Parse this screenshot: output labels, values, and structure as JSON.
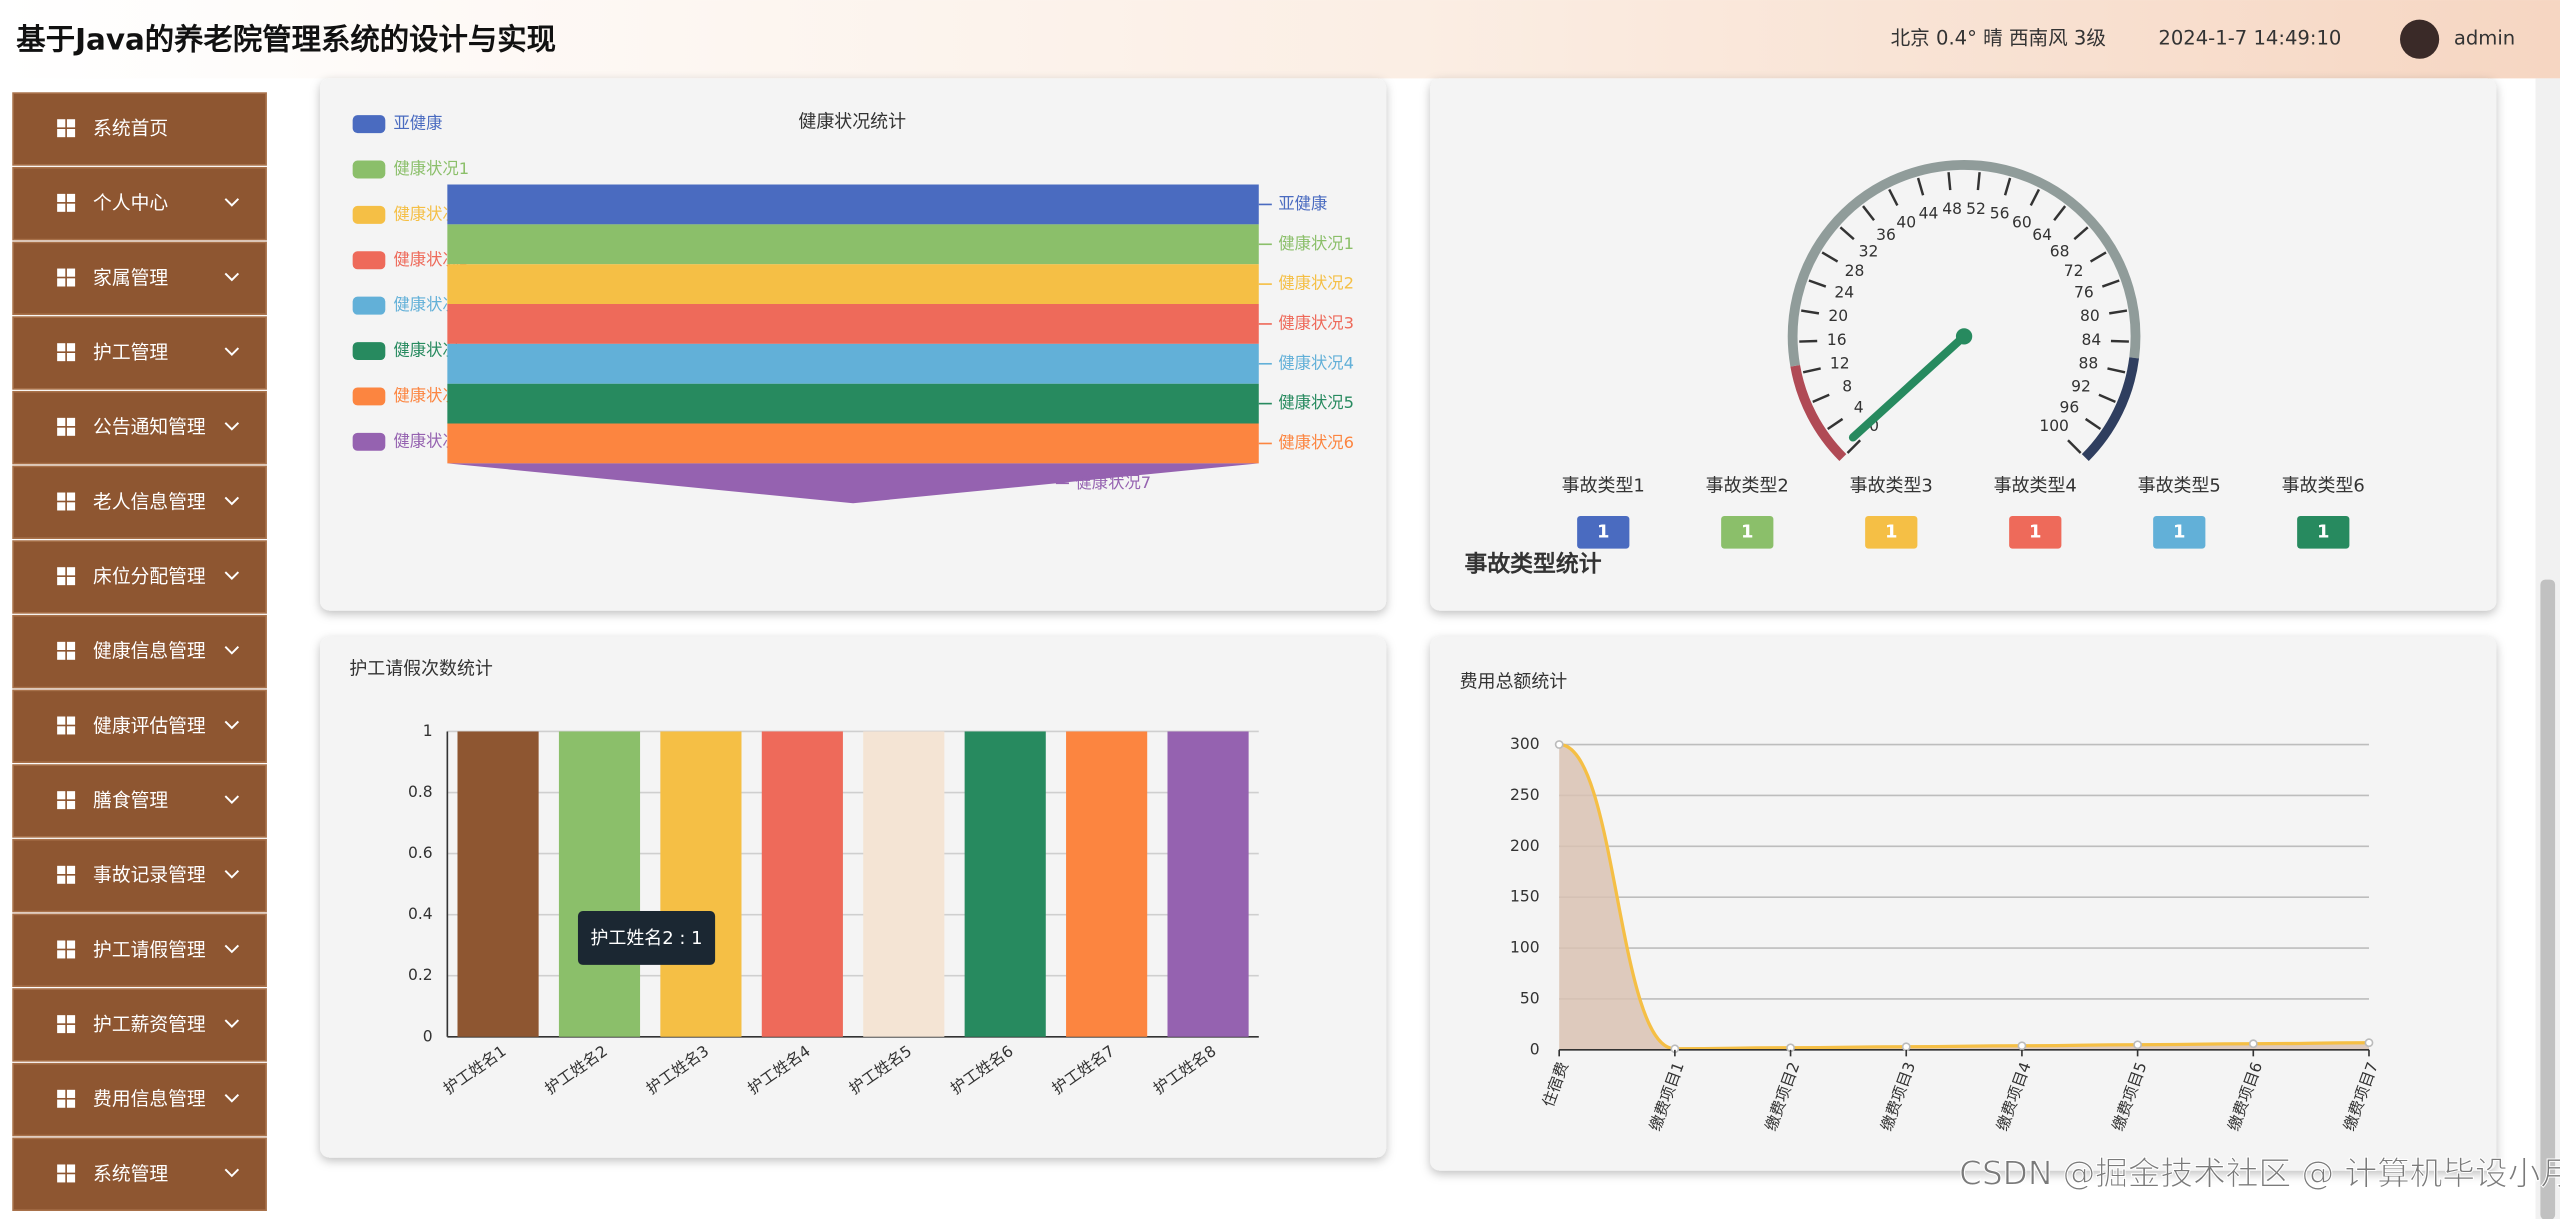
{
  "header": {
    "title": "基于Java的养老院管理系统的设计与实现",
    "weather": "北京  0.4°  晴  西南风  3级",
    "datetime": "2024-1-7 14:49:10",
    "user": "admin"
  },
  "menu": [
    {
      "label": "系统首页",
      "expandable": false
    },
    {
      "label": "个人中心",
      "expandable": true
    },
    {
      "label": "家属管理",
      "expandable": true
    },
    {
      "label": "护工管理",
      "expandable": true
    },
    {
      "label": "公告通知管理",
      "expandable": true
    },
    {
      "label": "老人信息管理",
      "expandable": true
    },
    {
      "label": "床位分配管理",
      "expandable": true
    },
    {
      "label": "健康信息管理",
      "expandable": true
    },
    {
      "label": "健康评估管理",
      "expandable": true
    },
    {
      "label": "膳食管理",
      "expandable": true
    },
    {
      "label": "事故记录管理",
      "expandable": true
    },
    {
      "label": "护工请假管理",
      "expandable": true
    },
    {
      "label": "护工薪资管理",
      "expandable": true
    },
    {
      "label": "费用信息管理",
      "expandable": true
    },
    {
      "label": "系统管理",
      "expandable": true
    }
  ],
  "chart_data": [
    {
      "type": "funnel",
      "title": "健康状况统计",
      "categories": [
        "亚健康",
        "健康状况1",
        "健康状况2",
        "健康状况3",
        "健康状况4",
        "健康状况5",
        "健康状况6",
        "健康状况7"
      ],
      "values": [
        1,
        1,
        1,
        1,
        1,
        1,
        1,
        1
      ],
      "colors": [
        "#4a6bc0",
        "#8bbf6a",
        "#f5bf45",
        "#ee6a5a",
        "#62b0d8",
        "#278a5f",
        "#fc8540",
        "#9562b0"
      ]
    },
    {
      "type": "gauge",
      "title": "事故类型统计",
      "value": 1,
      "ylim": [
        0,
        100
      ],
      "yticks": [
        0,
        4,
        8,
        12,
        16,
        20,
        24,
        28,
        32,
        36,
        40,
        44,
        48,
        52,
        56,
        60,
        64,
        68,
        72,
        76,
        80,
        84,
        88,
        92,
        96,
        100
      ],
      "pointer_color": "#278a5f",
      "categories": [
        "事故类型1",
        "事故类型2",
        "事故类型3",
        "事故类型4",
        "事故类型5",
        "事故类型6"
      ],
      "values": [
        1,
        1,
        1,
        1,
        1,
        1
      ],
      "colors": [
        "#4a6bc0",
        "#8bbf6a",
        "#f5bf45",
        "#ee6a5a",
        "#62b0d8",
        "#278a5f"
      ]
    },
    {
      "type": "bar",
      "title": "护工请假次数统计",
      "categories": [
        "护工姓名1",
        "护工姓名2",
        "护工姓名3",
        "护工姓名4",
        "护工姓名5",
        "护工姓名6",
        "护工姓名7",
        "护工姓名8"
      ],
      "values": [
        1,
        1,
        1,
        1,
        1,
        1,
        1,
        1
      ],
      "colors": [
        "#8e5631",
        "#8bbf6a",
        "#f5bf45",
        "#ee6a5a",
        "#f4e4d4",
        "#278a5f",
        "#fc8540",
        "#9562b0"
      ],
      "ylim": [
        0,
        1
      ],
      "yticks": [
        0,
        0.2,
        0.4,
        0.6,
        0.8,
        1
      ],
      "grid": true,
      "tooltip": "护工姓名2 : 1"
    },
    {
      "type": "line",
      "title": "费用总额统计",
      "categories": [
        "住宿费",
        "缴费项目1",
        "缴费项目2",
        "缴费项目3",
        "缴费项目4",
        "缴费项目5",
        "缴费项目6",
        "缴费项目7"
      ],
      "values": [
        300,
        1,
        2,
        3,
        4,
        5,
        6,
        7
      ],
      "color": "#f5bf45",
      "area_color": "#d9c2b3",
      "ylim": [
        0,
        300
      ],
      "yticks": [
        0,
        50,
        100,
        150,
        200,
        250,
        300
      ],
      "grid": true
    }
  ],
  "watermark": "CSDN @掘金技术社区 @ 计算机毕设小月哥"
}
